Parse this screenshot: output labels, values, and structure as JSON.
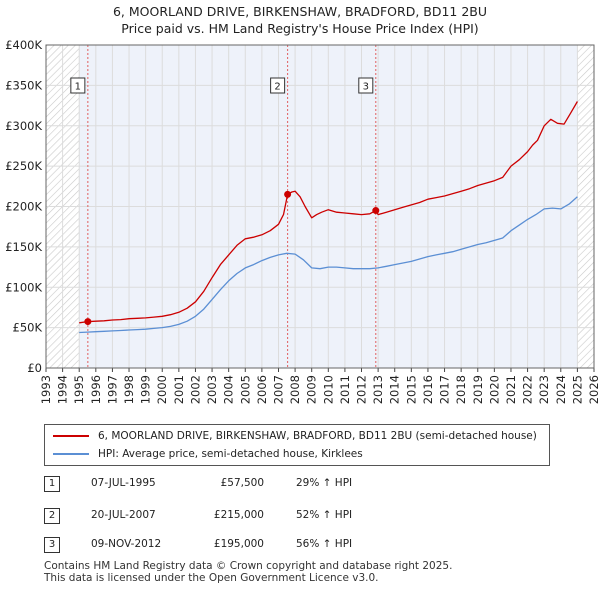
{
  "title_line1": "6, MOORLAND DRIVE, BIRKENSHAW, BRADFORD, BD11 2BU",
  "title_line2": "Price paid vs. HM Land Registry's House Price Index (HPI)",
  "colors": {
    "property": "#cc0000",
    "hpi": "#5b8fd4",
    "grid": "#dcdcdc",
    "plot_bg": "#eef2fa",
    "hatch": "#c9c9c9",
    "marker_line": "#e06060"
  },
  "chart_data": {
    "type": "line",
    "xlim": [
      1993.0,
      2026.0
    ],
    "ylim": [
      0,
      400000
    ],
    "x_ticks": [
      1993,
      1994,
      1995,
      1996,
      1997,
      1998,
      1999,
      2000,
      2001,
      2002,
      2003,
      2004,
      2005,
      2006,
      2007,
      2008,
      2009,
      2010,
      2011,
      2012,
      2013,
      2014,
      2015,
      2016,
      2017,
      2018,
      2019,
      2020,
      2021,
      2022,
      2023,
      2024,
      2025,
      2026
    ],
    "y_ticks": [
      {
        "value": 0,
        "label": "£0"
      },
      {
        "value": 50000,
        "label": "£50K"
      },
      {
        "value": 100000,
        "label": "£100K"
      },
      {
        "value": 150000,
        "label": "£150K"
      },
      {
        "value": 200000,
        "label": "£200K"
      },
      {
        "value": 250000,
        "label": "£250K"
      },
      {
        "value": 300000,
        "label": "£300K"
      },
      {
        "value": 350000,
        "label": "£350K"
      },
      {
        "value": 400000,
        "label": "£400K"
      }
    ],
    "hatched_before": 1995.0,
    "hatched_after": 2025.0,
    "series": [
      {
        "name": "6, MOORLAND DRIVE, BIRKENSHAW, BRADFORD, BD11 2BU (semi-detached house)",
        "color": "#cc0000",
        "x": [
          1995.0,
          1995.5,
          1996.0,
          1996.5,
          1997.0,
          1997.5,
          1998.0,
          1998.5,
          1999.0,
          1999.5,
          2000.0,
          2000.5,
          2001.0,
          2001.5,
          2002.0,
          2002.5,
          2003.0,
          2003.5,
          2004.0,
          2004.5,
          2005.0,
          2005.5,
          2006.0,
          2006.5,
          2007.0,
          2007.3,
          2007.55,
          2007.8,
          2008.0,
          2008.3,
          2008.6,
          2009.0,
          2009.3,
          2009.6,
          2010.0,
          2010.5,
          2011.0,
          2011.5,
          2012.0,
          2012.5,
          2012.86,
          2013.0,
          2013.5,
          2014.0,
          2014.5,
          2015.0,
          2015.5,
          2016.0,
          2016.5,
          2017.0,
          2017.5,
          2018.0,
          2018.5,
          2019.0,
          2019.5,
          2020.0,
          2020.5,
          2021.0,
          2021.5,
          2022.0,
          2022.3,
          2022.6,
          2023.0,
          2023.4,
          2023.8,
          2024.2,
          2024.6,
          2025.0
        ],
        "y": [
          56000,
          57500,
          58000,
          58500,
          59500,
          60000,
          61000,
          61500,
          62000,
          63000,
          64000,
          66000,
          69000,
          74000,
          82000,
          95000,
          112000,
          128000,
          140000,
          152000,
          160000,
          162000,
          165000,
          170000,
          178000,
          190000,
          215000,
          218000,
          219000,
          212000,
          200000,
          186000,
          190000,
          193000,
          196000,
          193000,
          192000,
          191000,
          190000,
          191000,
          195000,
          190000,
          193000,
          196000,
          199000,
          202000,
          205000,
          209000,
          211000,
          213000,
          216000,
          219000,
          222000,
          226000,
          229000,
          232000,
          236000,
          250000,
          258000,
          268000,
          276000,
          282000,
          300000,
          308000,
          303000,
          302000,
          316000,
          330000
        ]
      },
      {
        "name": "HPI: Average price, semi-detached house, Kirklees",
        "color": "#5b8fd4",
        "x": [
          1995.0,
          1995.5,
          1996.0,
          1996.5,
          1997.0,
          1997.5,
          1998.0,
          1998.5,
          1999.0,
          1999.5,
          2000.0,
          2000.5,
          2001.0,
          2001.5,
          2002.0,
          2002.5,
          2003.0,
          2003.5,
          2004.0,
          2004.5,
          2005.0,
          2005.5,
          2006.0,
          2006.5,
          2007.0,
          2007.5,
          2008.0,
          2008.5,
          2009.0,
          2009.5,
          2010.0,
          2010.5,
          2011.0,
          2011.5,
          2012.0,
          2012.5,
          2013.0,
          2013.5,
          2014.0,
          2014.5,
          2015.0,
          2015.5,
          2016.0,
          2016.5,
          2017.0,
          2017.5,
          2018.0,
          2018.5,
          2019.0,
          2019.5,
          2020.0,
          2020.5,
          2021.0,
          2021.5,
          2022.0,
          2022.5,
          2023.0,
          2023.5,
          2024.0,
          2024.5,
          2025.0
        ],
        "y": [
          44000,
          44500,
          45000,
          45500,
          46000,
          46500,
          47000,
          47500,
          48000,
          49000,
          50000,
          51500,
          54000,
          58000,
          64000,
          73000,
          85000,
          97000,
          108000,
          117000,
          124000,
          128000,
          133000,
          137000,
          140000,
          142000,
          141000,
          134000,
          124000,
          123000,
          125000,
          125000,
          124000,
          123000,
          123000,
          123000,
          124000,
          126000,
          128000,
          130000,
          132000,
          135000,
          138000,
          140000,
          142000,
          144000,
          147000,
          150000,
          153000,
          155000,
          158000,
          161000,
          170000,
          177000,
          184000,
          190000,
          197000,
          198000,
          197000,
          203000,
          212000
        ]
      }
    ],
    "sales": [
      {
        "marker": "1",
        "x": 1995.52,
        "price_value": 57500,
        "date": "07-JUL-1995",
        "price": "£57,500",
        "hpi": "29% ↑ HPI"
      },
      {
        "marker": "2",
        "x": 2007.55,
        "price_value": 215000,
        "date": "20-JUL-2007",
        "price": "£215,000",
        "hpi": "52% ↑ HPI"
      },
      {
        "marker": "3",
        "x": 2012.86,
        "price_value": 195000,
        "date": "09-NOV-2012",
        "price": "£195,000",
        "hpi": "56% ↑ HPI"
      }
    ]
  },
  "legend": {
    "property_label": "6, MOORLAND DRIVE, BIRKENSHAW, BRADFORD, BD11 2BU (semi-detached house)",
    "hpi_label": "HPI: Average price, semi-detached house, Kirklees"
  },
  "footer": {
    "line1": "Contains HM Land Registry data © Crown copyright and database right 2025.",
    "line2": "This data is licensed under the Open Government Licence v3.0."
  }
}
